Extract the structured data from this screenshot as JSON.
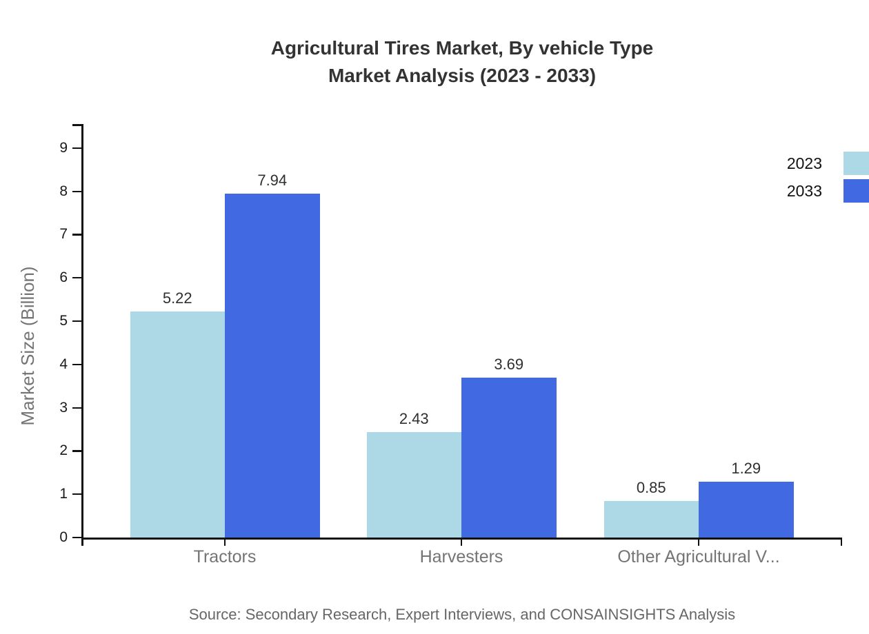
{
  "title": {
    "line1": "Agricultural Tires Market, By vehicle Type",
    "line2": "Market Analysis (2023 - 2033)"
  },
  "source": "Source: Secondary Research, Expert Interviews, and CONSAINSIGHTS Analysis",
  "chart_data": {
    "type": "bar",
    "categories": [
      "Tractors",
      "Harvesters",
      "Other Agricultural V..."
    ],
    "series": [
      {
        "name": "2023",
        "color": "#ADD8E6",
        "values": [
          5.22,
          2.43,
          0.85
        ]
      },
      {
        "name": "2033",
        "color": "#4169E1",
        "values": [
          7.94,
          3.69,
          1.29
        ]
      }
    ],
    "title": "Agricultural Tires Market, By vehicle Type Market Analysis (2023 - 2033)",
    "xlabel": "",
    "ylabel": "Market Size (Billion)",
    "yticks": [
      0,
      1,
      2,
      3,
      4,
      5,
      6,
      7,
      8,
      9
    ],
    "ylim": [
      0,
      9.55
    ],
    "grid": false,
    "legend_position": "right-edge",
    "value_label_format": "0.00"
  },
  "colors": {
    "axis": "#111111",
    "title": "#333333",
    "tick_label": "#1a1a1a",
    "muted_label": "#747474",
    "value_label": "#2f2f2f",
    "legend_text": "#111111",
    "source_text": "#666666",
    "series_2023": "#ADD8E6",
    "series_2033": "#4169E1"
  }
}
